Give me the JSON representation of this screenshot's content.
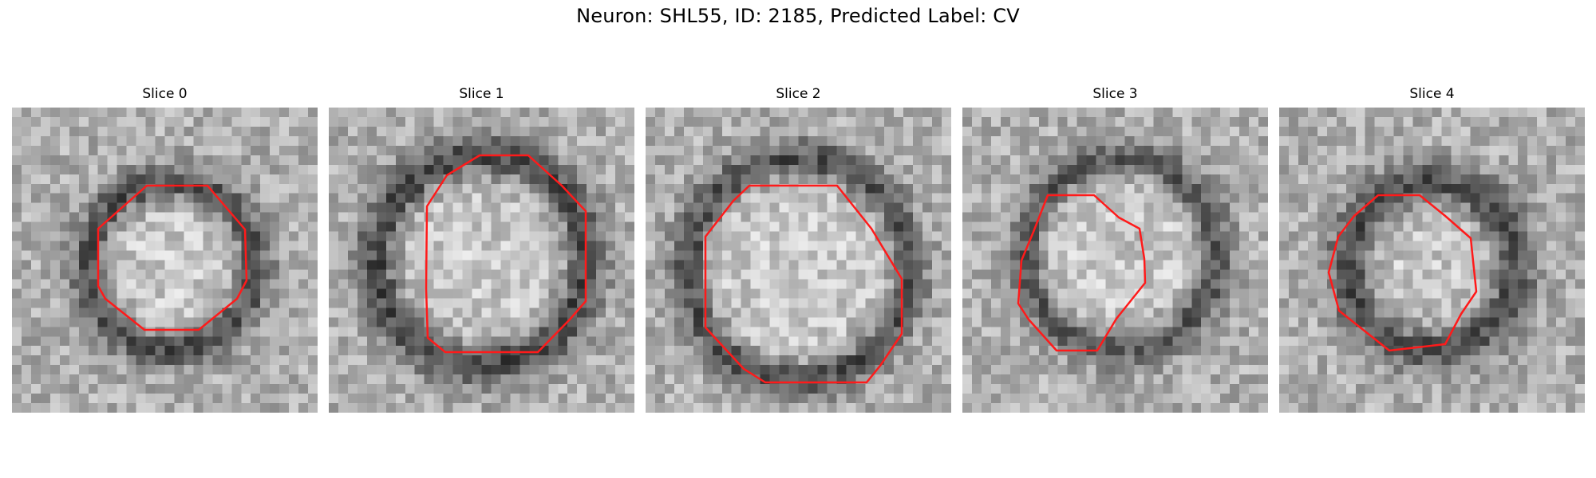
{
  "figure": {
    "title": "Neuron: SHL55, ID: 2185, Predicted Label: CV"
  },
  "colors": {
    "contour": "#ff1a1a",
    "background": "#ffffff"
  },
  "panels": [
    {
      "title": "Slice 0"
    },
    {
      "title": "Slice 1"
    },
    {
      "title": "Slice 2"
    },
    {
      "title": "Slice 3"
    },
    {
      "title": "Slice 4"
    }
  ]
}
